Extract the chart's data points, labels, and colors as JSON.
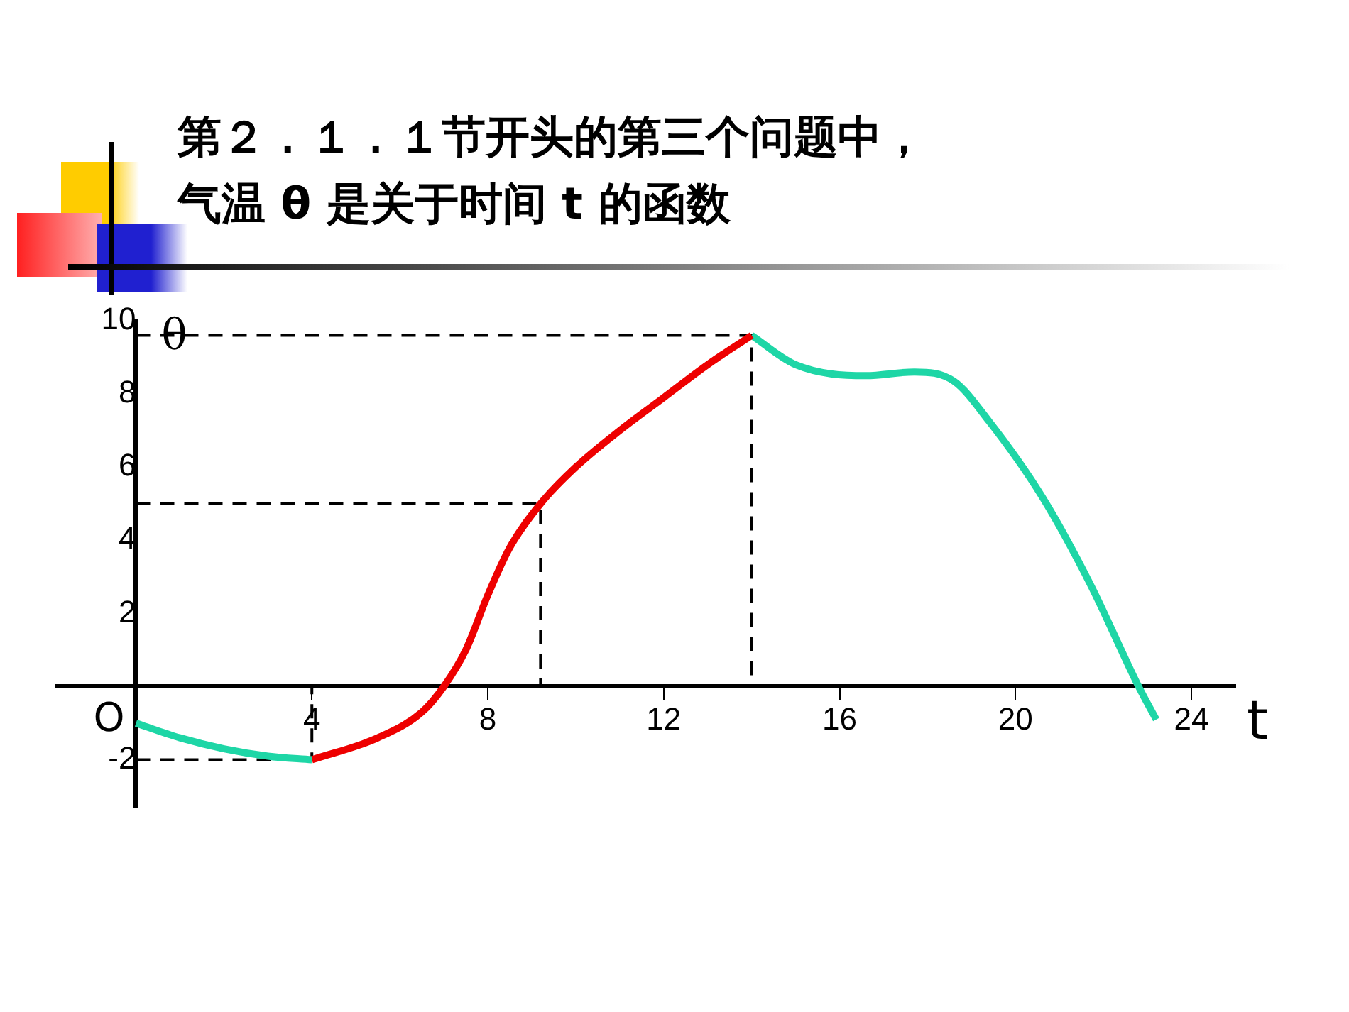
{
  "chart_data": {
    "type": "line",
    "title": "第２．１．１节开头的第三个问题中，气温 θ 是关于时间 t 的函数",
    "xlabel": "t",
    "ylabel": "θ",
    "annotations": [
      "O"
    ],
    "xlim": [
      -1.8,
      25
    ],
    "xticks": [
      4,
      8,
      12,
      16,
      20,
      24
    ],
    "ylim": [
      -3.3,
      10
    ],
    "yticks": [
      -2,
      2,
      4,
      6,
      8,
      10
    ],
    "grid": false,
    "legend": false,
    "marker": "none",
    "series": [
      {
        "color": "#1ed6a6",
        "x": [
          0,
          1,
          2,
          3,
          4
        ],
        "values": [
          -1,
          -1.4,
          -1.7,
          -1.9,
          -2
        ]
      },
      {
        "color": "#ee0000",
        "x": [
          4,
          5.5,
          6.5,
          7,
          7.5,
          8,
          8.5,
          9.2,
          10,
          11,
          12,
          13,
          14
        ],
        "values": [
          -2,
          -1.4,
          -0.7,
          0,
          1,
          2.5,
          3.8,
          5,
          6,
          7,
          7.9,
          8.8,
          9.6
        ]
      },
      {
        "color": "#1ed6a6",
        "x": [
          14,
          15,
          16.6,
          17.7,
          18.6,
          19.4,
          20.6,
          21.7,
          22.8,
          23.2
        ],
        "values": [
          9.6,
          8.8,
          8.5,
          8.6,
          8.35,
          7.25,
          5.2,
          2.8,
          0,
          -0.9
        ]
      },
      {
        "color": "#000000",
        "line_style": "dashed",
        "x": [
          0,
          4,
          4
        ],
        "values": [
          -2,
          -2,
          0
        ]
      },
      {
        "color": "#000000",
        "line_style": "dashed",
        "x": [
          0,
          9.2,
          9.2
        ],
        "values": [
          5,
          5,
          0
        ]
      },
      {
        "color": "#000000",
        "line_style": "dashed",
        "x": [
          0,
          14,
          14
        ],
        "values": [
          9.6,
          9.6,
          0
        ]
      }
    ]
  }
}
